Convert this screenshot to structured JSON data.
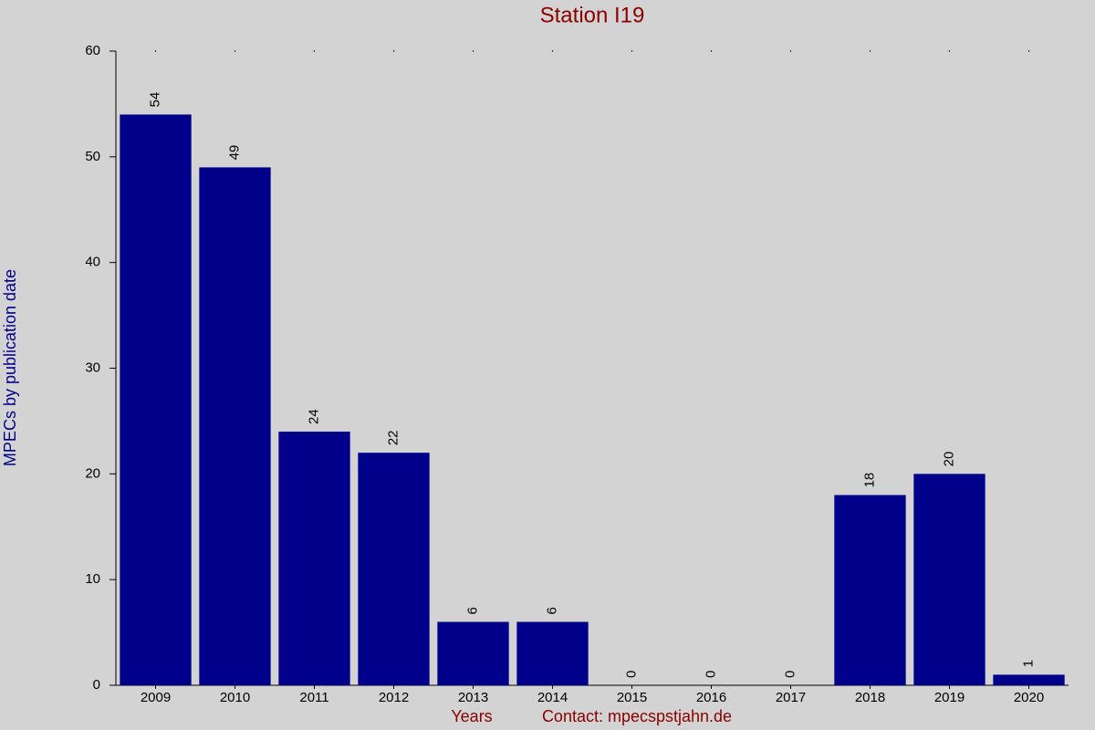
{
  "chart_data": {
    "type": "bar",
    "title": "Station I19",
    "y_label": "MPECs by publication date",
    "x_label": "Years",
    "footer": "Contact: mpecspstjahn.de",
    "categories": [
      "2009",
      "2010",
      "2011",
      "2012",
      "2013",
      "2014",
      "2015",
      "2016",
      "2017",
      "2018",
      "2019",
      "2020"
    ],
    "values": [
      54,
      49,
      24,
      22,
      6,
      6,
      0,
      0,
      0,
      18,
      20,
      1
    ],
    "color": "#00008b",
    "ylim": [
      0,
      60
    ],
    "yticks": [
      0,
      10,
      20,
      30,
      40,
      50,
      60
    ]
  }
}
